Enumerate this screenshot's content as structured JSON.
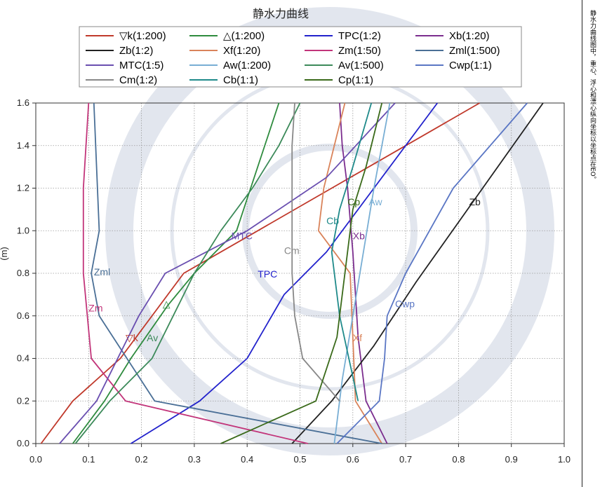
{
  "side_note": "静水力曲线图中，重心、浮心和漂心纵向坐标以坐标点在EO。",
  "chart_data": {
    "type": "line",
    "title": "静水力曲线",
    "ylabel_fragment": "(m)",
    "xlim": [
      0,
      1.0
    ],
    "ylim": [
      0,
      1.6
    ],
    "x_ticks": [
      "0.0",
      "0.1",
      "0.2",
      "0.3",
      "0.4",
      "0.5",
      "0.6",
      "0.7",
      "0.8",
      "0.9",
      "1.0"
    ],
    "y_ticks": [
      "0.0",
      "0.2",
      "0.4",
      "0.6",
      "0.8",
      "1.0",
      "1.2",
      "1.4",
      "1.6"
    ],
    "grid": true,
    "legend_position": "top",
    "series": [
      {
        "name": "▽k(1:200)",
        "color": "#c0392b",
        "label": "▽k",
        "points": [
          [
            0.01,
            0
          ],
          [
            0.07,
            0.2
          ],
          [
            0.16,
            0.4
          ],
          [
            0.28,
            0.8
          ],
          [
            0.42,
            1.0
          ],
          [
            0.56,
            1.2
          ],
          [
            0.7,
            1.4
          ],
          [
            0.84,
            1.6
          ]
        ]
      },
      {
        "name": "△(1:200)",
        "color": "#2e8b3e",
        "label": "△",
        "points": [
          [
            0.07,
            0
          ],
          [
            0.13,
            0.2
          ],
          [
            0.18,
            0.4
          ],
          [
            0.25,
            0.65
          ],
          [
            0.3,
            0.8
          ],
          [
            0.38,
            1.0
          ],
          [
            0.46,
            1.6
          ]
        ]
      },
      {
        "name": "TPC(1:2)",
        "color": "#2222cc",
        "label": "TPC",
        "points": [
          [
            0.18,
            0
          ],
          [
            0.31,
            0.2
          ],
          [
            0.4,
            0.4
          ],
          [
            0.47,
            0.7
          ],
          [
            0.55,
            0.9
          ],
          [
            0.64,
            1.2
          ],
          [
            0.76,
            1.6
          ]
        ]
      },
      {
        "name": "Xb(1:20)",
        "color": "#7b2d8e",
        "label": "Xb",
        "points": [
          [
            0.665,
            0
          ],
          [
            0.625,
            0.2
          ],
          [
            0.61,
            0.5
          ],
          [
            0.6,
            0.9
          ],
          [
            0.59,
            1.2
          ],
          [
            0.58,
            1.4
          ],
          [
            0.575,
            1.6
          ]
        ]
      },
      {
        "name": "Zb(1:2)",
        "color": "#222222",
        "label": "Zb",
        "points": [
          [
            0.485,
            0
          ],
          [
            0.56,
            0.2
          ],
          [
            0.64,
            0.46
          ],
          [
            0.72,
            0.76
          ],
          [
            0.8,
            1.04
          ],
          [
            0.96,
            1.6
          ]
        ]
      },
      {
        "name": "Xf(1:20)",
        "color": "#d9835a",
        "label": "Xf",
        "points": [
          [
            0.655,
            0
          ],
          [
            0.605,
            0.2
          ],
          [
            0.6,
            0.5
          ],
          [
            0.595,
            0.8
          ],
          [
            0.535,
            1.0
          ],
          [
            0.545,
            1.2
          ],
          [
            0.565,
            1.4
          ],
          [
            0.585,
            1.6
          ]
        ]
      },
      {
        "name": "Zm(1:50)",
        "color": "#c2357a",
        "label": "Zm",
        "points": [
          [
            0.515,
            0
          ],
          [
            0.17,
            0.2
          ],
          [
            0.105,
            0.4
          ],
          [
            0.09,
            0.8
          ],
          [
            0.09,
            1.2
          ],
          [
            0.1,
            1.6
          ]
        ]
      },
      {
        "name": "Zml(1:500)",
        "color": "#4a6f96",
        "label": "Zml",
        "points": [
          [
            0.655,
            0
          ],
          [
            0.225,
            0.2
          ],
          [
            0.12,
            0.6
          ],
          [
            0.105,
            0.8
          ],
          [
            0.12,
            1.0
          ],
          [
            0.11,
            1.6
          ]
        ]
      },
      {
        "name": "MTC(1:5)",
        "color": "#6a4fb0",
        "label": "MTC",
        "points": [
          [
            0.045,
            0
          ],
          [
            0.115,
            0.2
          ],
          [
            0.195,
            0.6
          ],
          [
            0.245,
            0.8
          ],
          [
            0.4,
            1.0
          ],
          [
            0.55,
            1.25
          ],
          [
            0.68,
            1.6
          ]
        ]
      },
      {
        "name": "Aw(1:200)",
        "color": "#78aed4",
        "label": "Aw",
        "points": [
          [
            0.565,
            0
          ],
          [
            0.58,
            0.3
          ],
          [
            0.62,
            0.9
          ],
          [
            0.64,
            1.2
          ],
          [
            0.67,
            1.6
          ]
        ]
      },
      {
        "name": "Av(1:500)",
        "color": "#3c8a5a",
        "label": "Av",
        "points": [
          [
            0.075,
            0
          ],
          [
            0.14,
            0.2
          ],
          [
            0.22,
            0.4
          ],
          [
            0.3,
            0.8
          ],
          [
            0.35,
            1.0
          ],
          [
            0.41,
            1.2
          ],
          [
            0.46,
            1.4
          ],
          [
            0.5,
            1.6
          ]
        ]
      },
      {
        "name": "Cwp(1:1)",
        "color": "#5a76c4",
        "label": "Cwp",
        "points": [
          [
            0.57,
            0
          ],
          [
            0.65,
            0.2
          ],
          [
            0.66,
            0.4
          ],
          [
            0.665,
            0.6
          ],
          [
            0.7,
            0.8
          ],
          [
            0.79,
            1.2
          ],
          [
            0.93,
            1.6
          ]
        ]
      },
      {
        "name": "Cm(1:2)",
        "color": "#888888",
        "label": "Cm",
        "points": [
          [
            0.575,
            0.2
          ],
          [
            0.505,
            0.4
          ],
          [
            0.49,
            0.6
          ],
          [
            0.485,
            0.8
          ],
          [
            0.485,
            1.0
          ],
          [
            0.485,
            1.4
          ],
          [
            0.49,
            1.6
          ]
        ]
      },
      {
        "name": "Cb(1:1)",
        "color": "#1f8a8a",
        "label": "Cb",
        "points": [
          [
            0.61,
            0.2
          ],
          [
            0.575,
            0.6
          ],
          [
            0.56,
            0.9
          ],
          [
            0.575,
            1.1
          ],
          [
            0.6,
            1.3
          ],
          [
            0.635,
            1.6
          ]
        ]
      },
      {
        "name": "Cp(1:1)",
        "color": "#3a6a1a",
        "label": "Cp",
        "points": [
          [
            0.35,
            0
          ],
          [
            0.53,
            0.2
          ],
          [
            0.57,
            0.5
          ],
          [
            0.585,
            0.8
          ],
          [
            0.6,
            1.1
          ],
          [
            0.625,
            1.3
          ],
          [
            0.655,
            1.6
          ]
        ]
      }
    ]
  }
}
